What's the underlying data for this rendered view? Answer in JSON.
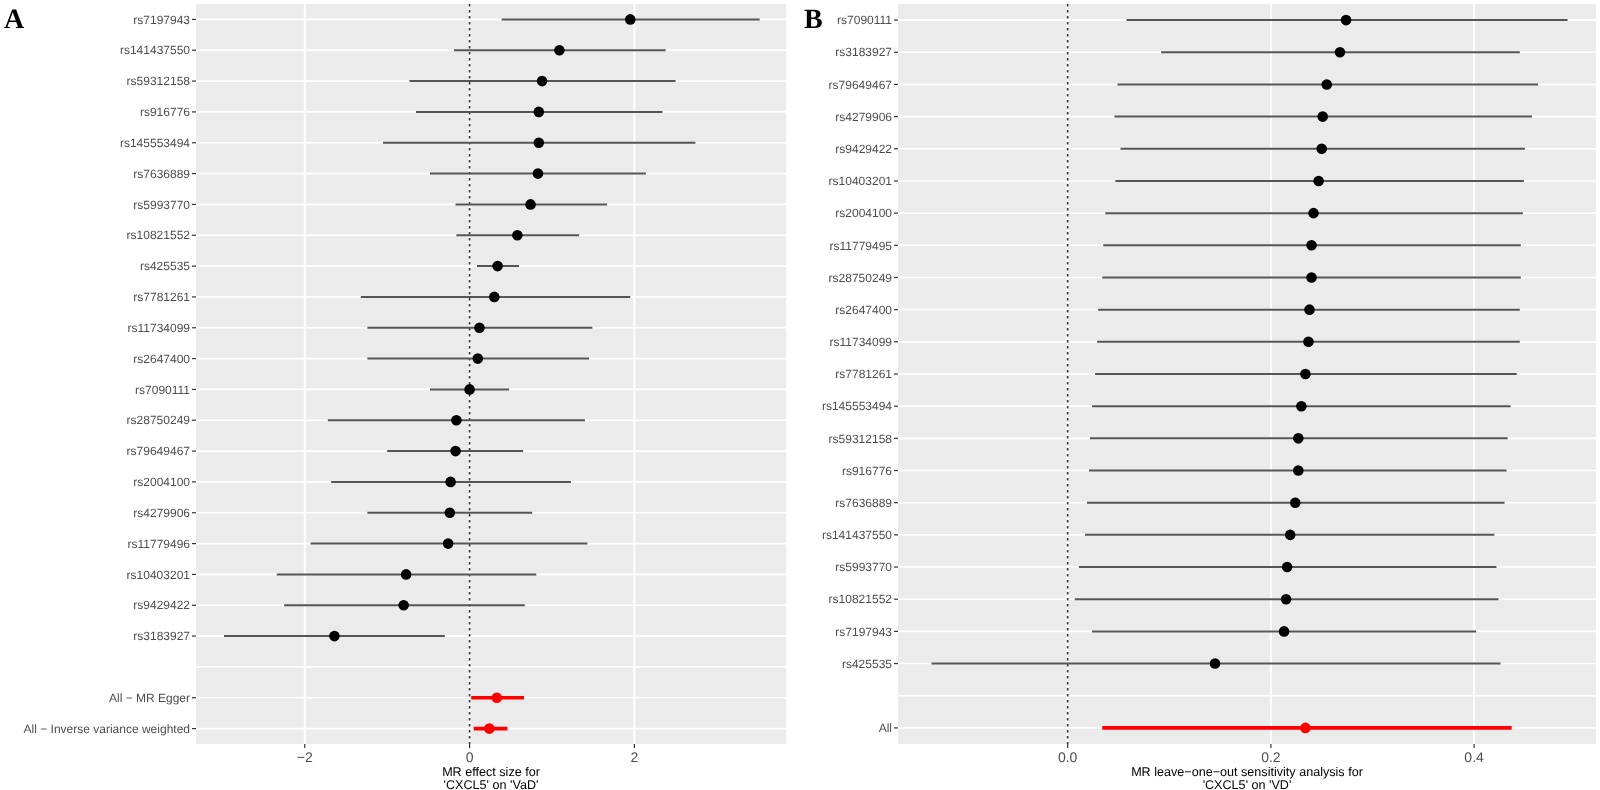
{
  "chart_data": [
    {
      "type": "scatter",
      "title": "A",
      "orientation": "horizontal",
      "xlabel": "MR effect size for\n'CXCL5' on 'VaD'",
      "categories": [
        "rs7197943",
        "rs141437550",
        "rs59312158",
        "rs916776",
        "rs145553494",
        "rs7636889",
        "rs5993770",
        "rs10821552",
        "rs425535",
        "rs7781261",
        "rs11734099",
        "rs2647400",
        "rs7090111",
        "rs28750249",
        "rs79649467",
        "rs2004100",
        "rs4279906",
        "rs11779496",
        "rs10403201",
        "rs9429422",
        "rs3183927",
        null,
        "All − MR Egger",
        "All − Inverse variance weighted"
      ],
      "series": [
        {
          "color": "#000000",
          "values": [
            1.95,
            1.09,
            0.88,
            0.84,
            0.84,
            0.83,
            0.74,
            0.58,
            0.34,
            0.3,
            0.12,
            0.1,
            0.0,
            -0.16,
            -0.17,
            -0.23,
            -0.24,
            -0.26,
            -0.77,
            -0.8,
            -1.64,
            null,
            null,
            null
          ],
          "errors": [
            [
              0.39,
              3.52
            ],
            [
              -0.19,
              2.38
            ],
            [
              -0.73,
              2.5
            ],
            [
              -0.65,
              2.34
            ],
            [
              -1.05,
              2.74
            ],
            [
              -0.48,
              2.14
            ],
            [
              -0.17,
              1.67
            ],
            [
              -0.16,
              1.33
            ],
            [
              0.09,
              0.6
            ],
            [
              -1.32,
              1.95
            ],
            [
              -1.24,
              1.49
            ],
            [
              -1.24,
              1.45
            ],
            [
              -0.48,
              0.48
            ],
            [
              -1.72,
              1.4
            ],
            [
              -1.0,
              0.65
            ],
            [
              -1.68,
              1.23
            ],
            [
              -1.24,
              0.76
            ],
            [
              -1.93,
              1.43
            ],
            [
              -2.34,
              0.81
            ],
            [
              -2.25,
              0.67
            ],
            [
              -2.98,
              -0.3
            ],
            null,
            null,
            null
          ]
        },
        {
          "color": "#ff0000",
          "values": [
            null,
            null,
            null,
            null,
            null,
            null,
            null,
            null,
            null,
            null,
            null,
            null,
            null,
            null,
            null,
            null,
            null,
            null,
            null,
            null,
            null,
            null,
            0.33,
            0.24
          ],
          "errors": [
            null,
            null,
            null,
            null,
            null,
            null,
            null,
            null,
            null,
            null,
            null,
            null,
            null,
            null,
            null,
            null,
            null,
            null,
            null,
            null,
            null,
            null,
            [
              0.02,
              0.66
            ],
            [
              0.05,
              0.46
            ]
          ]
        }
      ],
      "xlim": [
        -3.32,
        3.84
      ],
      "xticks": [
        {
          "value": -2,
          "label": "−2"
        },
        0,
        2
      ],
      "grid": true,
      "marker": "circle",
      "ref_lines": [
        {
          "axis": "x",
          "value": 0,
          "line_style": "dotted",
          "color": "#333333"
        }
      ]
    },
    {
      "type": "scatter",
      "title": "B",
      "orientation": "horizontal",
      "xlabel": "MR leave−one−out sensitivity analysis for\n'CXCL5' on 'VD'",
      "categories": [
        "rs7090111",
        "rs3183927",
        "rs79649467",
        "rs4279906",
        "rs9429422",
        "rs10403201",
        "rs2004100",
        "rs11779495",
        "rs28750249",
        "rs2647400",
        "rs11734099",
        "rs7781261",
        "rs145553494",
        "rs59312158",
        "rs916776",
        "rs7636889",
        "rs141437550",
        "rs5993770",
        "rs10821552",
        "rs7197943",
        "rs425535",
        null,
        "All"
      ],
      "series": [
        {
          "color": "#000000",
          "values": [
            0.274,
            0.268,
            0.255,
            0.251,
            0.25,
            0.247,
            0.242,
            0.24,
            0.24,
            0.238,
            0.237,
            0.234,
            0.23,
            0.227,
            0.227,
            0.224,
            0.219,
            0.216,
            0.215,
            0.213,
            0.145,
            null,
            null
          ],
          "errors": [
            [
              0.058,
              0.492
            ],
            [
              0.092,
              0.445
            ],
            [
              0.049,
              0.463
            ],
            [
              0.046,
              0.457
            ],
            [
              0.052,
              0.45
            ],
            [
              0.047,
              0.449
            ],
            [
              0.037,
              0.448
            ],
            [
              0.035,
              0.446
            ],
            [
              0.034,
              0.446
            ],
            [
              0.03,
              0.445
            ],
            [
              0.029,
              0.445
            ],
            [
              0.027,
              0.442
            ],
            [
              0.024,
              0.436
            ],
            [
              0.022,
              0.433
            ],
            [
              0.021,
              0.432
            ],
            [
              0.019,
              0.43
            ],
            [
              0.017,
              0.42
            ],
            [
              0.011,
              0.422
            ],
            [
              0.007,
              0.424
            ],
            [
              0.024,
              0.402
            ],
            [
              -0.134,
              0.426
            ],
            null,
            null
          ]
        },
        {
          "color": "#ff0000",
          "values": [
            null,
            null,
            null,
            null,
            null,
            null,
            null,
            null,
            null,
            null,
            null,
            null,
            null,
            null,
            null,
            null,
            null,
            null,
            null,
            null,
            null,
            null,
            0.234
          ],
          "errors": [
            null,
            null,
            null,
            null,
            null,
            null,
            null,
            null,
            null,
            null,
            null,
            null,
            null,
            null,
            null,
            null,
            null,
            null,
            null,
            null,
            null,
            null,
            [
              0.034,
              0.437
            ]
          ]
        }
      ],
      "xlim": [
        -0.167,
        0.52
      ],
      "xticks": [
        {
          "value": 0,
          "label": "0.0"
        },
        {
          "value": 0.2,
          "label": "0.2"
        },
        {
          "value": 0.4,
          "label": "0.4"
        }
      ],
      "grid": true,
      "marker": "circle",
      "ref_lines": [
        {
          "axis": "x",
          "value": 0,
          "line_style": "dotted",
          "color": "#333333"
        }
      ]
    }
  ]
}
